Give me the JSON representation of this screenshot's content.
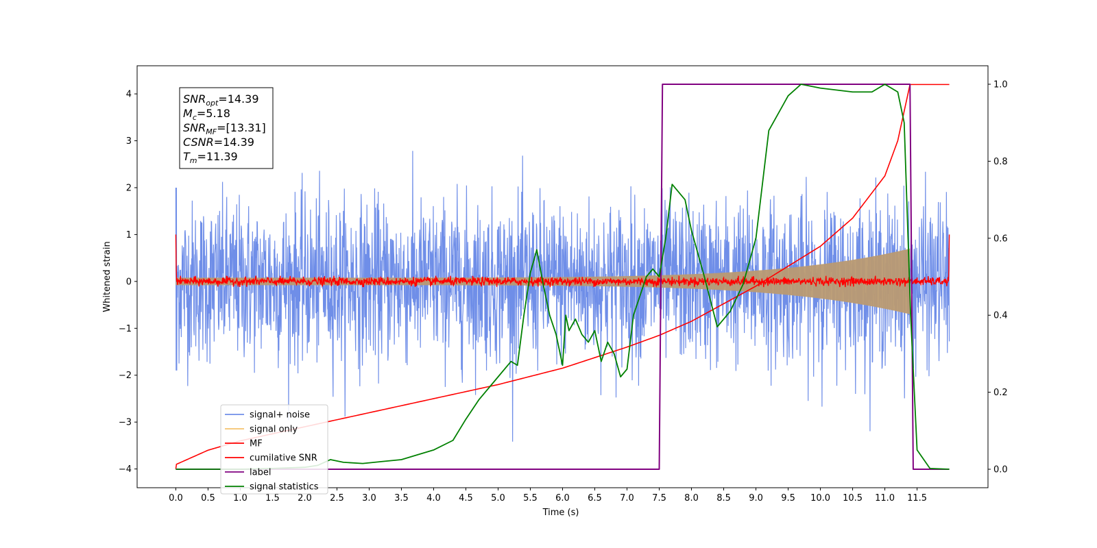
{
  "chart_data": {
    "type": "line",
    "xlabel": "Time (s)",
    "ylabel": "Whitened strain",
    "xlim": [
      -0.6,
      12.6
    ],
    "ylim": [
      -4.4,
      4.6
    ],
    "y2lim": [
      -0.048,
      1.048
    ],
    "x_ticks": [
      "0.0",
      "0.5",
      "1.0",
      "1.5",
      "2.0",
      "2.5",
      "3.0",
      "3.5",
      "4.0",
      "4.5",
      "5.0",
      "5.5",
      "6.0",
      "6.5",
      "7.0",
      "7.5",
      "8.0",
      "8.5",
      "9.0",
      "9.5",
      "10.0",
      "10.5",
      "11.0",
      "11.5"
    ],
    "y_ticks": [
      "−4",
      "−3",
      "−2",
      "−1",
      "0",
      "1",
      "2",
      "3",
      "4"
    ],
    "y2_ticks": [
      "0.0",
      "0.2",
      "0.4",
      "0.6",
      "0.8",
      "1.0"
    ],
    "colors": {
      "signal_noise": "#6f8ee8",
      "signal_only": "#f5c26b",
      "signal_only_overlap": "#b99a72",
      "mf": "#ff0000",
      "cumulative_snr": "#ff0000",
      "label": "#800080",
      "signal_statistics": "#008000"
    },
    "legend_position": "lower-left",
    "series": [
      {
        "name": "signal+ noise",
        "kind": "noise",
        "duration": 12.0,
        "envelope": [
          -2.3,
          2.3
        ],
        "axis": "left"
      },
      {
        "name": "signal only",
        "kind": "chirp",
        "amplitude_start": 0.08,
        "amplitude_end": 0.7,
        "merger_time": 11.39,
        "axis": "left"
      },
      {
        "name": "MF",
        "kind": "noise",
        "envelope": [
          -0.12,
          0.12
        ],
        "edge_value": 1.0,
        "axis": "left"
      },
      {
        "name": "cumilative SNR",
        "axis": "left",
        "x": [
          0.0,
          0.01,
          0.5,
          1.0,
          2.0,
          3.0,
          4.0,
          5.0,
          6.0,
          7.0,
          7.5,
          8.0,
          9.0,
          10.0,
          10.5,
          11.0,
          11.2,
          11.39,
          12.0
        ],
        "y": [
          -4.0,
          -3.9,
          -3.6,
          -3.4,
          -3.1,
          -2.8,
          -2.5,
          -2.2,
          -1.85,
          -1.4,
          -1.15,
          -0.85,
          -0.1,
          0.75,
          1.35,
          2.25,
          3.0,
          4.2,
          4.2
        ]
      },
      {
        "name": "label",
        "axis": "right",
        "x": [
          0.0,
          7.5,
          7.55,
          11.39,
          11.44,
          12.0
        ],
        "y": [
          0.0,
          0.0,
          1.0,
          1.0,
          0.0,
          0.0
        ]
      },
      {
        "name": "signal statistics",
        "axis": "right",
        "x": [
          0.0,
          1.0,
          1.5,
          2.0,
          2.2,
          2.4,
          2.6,
          2.9,
          3.2,
          3.5,
          3.8,
          4.0,
          4.3,
          4.5,
          4.7,
          4.9,
          5.0,
          5.2,
          5.3,
          5.4,
          5.5,
          5.6,
          5.7,
          5.8,
          5.9,
          6.0,
          6.05,
          6.1,
          6.2,
          6.3,
          6.4,
          6.5,
          6.6,
          6.7,
          6.8,
          6.9,
          7.0,
          7.1,
          7.2,
          7.3,
          7.4,
          7.5,
          7.6,
          7.7,
          7.8,
          7.9,
          8.0,
          8.2,
          8.4,
          8.6,
          8.8,
          9.0,
          9.2,
          9.5,
          9.7,
          10.0,
          10.5,
          10.8,
          11.0,
          11.2,
          11.3,
          11.4,
          11.5,
          11.7,
          12.0
        ],
        "y": [
          0.0,
          0.0,
          0.002,
          0.005,
          0.01,
          0.025,
          0.018,
          0.015,
          0.02,
          0.025,
          0.04,
          0.05,
          0.075,
          0.13,
          0.18,
          0.22,
          0.24,
          0.28,
          0.27,
          0.4,
          0.51,
          0.57,
          0.48,
          0.4,
          0.35,
          0.27,
          0.4,
          0.36,
          0.39,
          0.35,
          0.33,
          0.36,
          0.28,
          0.33,
          0.3,
          0.24,
          0.26,
          0.4,
          0.45,
          0.5,
          0.52,
          0.5,
          0.6,
          0.74,
          0.72,
          0.7,
          0.62,
          0.5,
          0.37,
          0.41,
          0.48,
          0.6,
          0.88,
          0.97,
          1.0,
          0.99,
          0.98,
          0.98,
          1.0,
          0.98,
          0.9,
          0.4,
          0.05,
          0.002,
          0.0
        ]
      }
    ],
    "info_box": [
      {
        "base": "SNR",
        "sub": "opt",
        "value": "=14.39"
      },
      {
        "base": "M",
        "sub": "c",
        "value": "=5.18"
      },
      {
        "base": "SNR",
        "sub": "MF",
        "value": "=[13.31]"
      },
      {
        "base": "CSNR",
        "sub": "",
        "value": "=14.39"
      },
      {
        "base": "T",
        "sub": "m",
        "value": "=11.39"
      }
    ]
  }
}
